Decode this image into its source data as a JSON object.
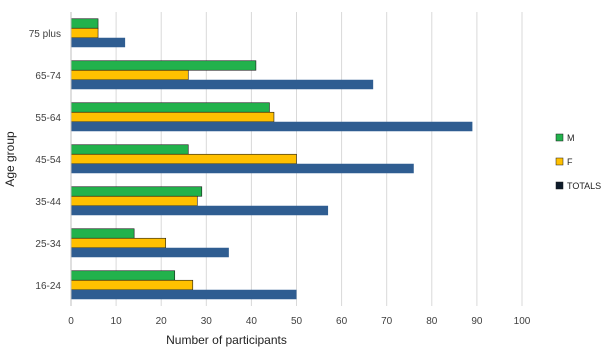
{
  "chart_data": {
    "type": "bar",
    "orientation": "horizontal",
    "categories": [
      "16-24",
      "25-34",
      "35-44",
      "45-54",
      "55-64",
      "65-74",
      "75 plus"
    ],
    "series": [
      {
        "name": "M",
        "color": "#22b24c",
        "values": [
          23,
          14,
          29,
          26,
          44,
          41,
          6
        ]
      },
      {
        "name": "F",
        "color": "#ffc000",
        "values": [
          27,
          21,
          28,
          50,
          45,
          26,
          6
        ]
      },
      {
        "name": "TOTALS",
        "color": "#2f5d91",
        "values": [
          50,
          35,
          57,
          76,
          89,
          67,
          12
        ]
      }
    ],
    "legend_series_colors": {
      "M": "#22b24c",
      "F": "#ffc000",
      "TOTALS": "#0d1b2a"
    },
    "xlabel": "Number of participants",
    "ylabel": "Age group",
    "xlim": [
      0,
      100
    ],
    "xticks": [
      0,
      10,
      20,
      30,
      40,
      50,
      60,
      70,
      80,
      90,
      100
    ],
    "grid": "vertical",
    "legend_position": "right"
  }
}
